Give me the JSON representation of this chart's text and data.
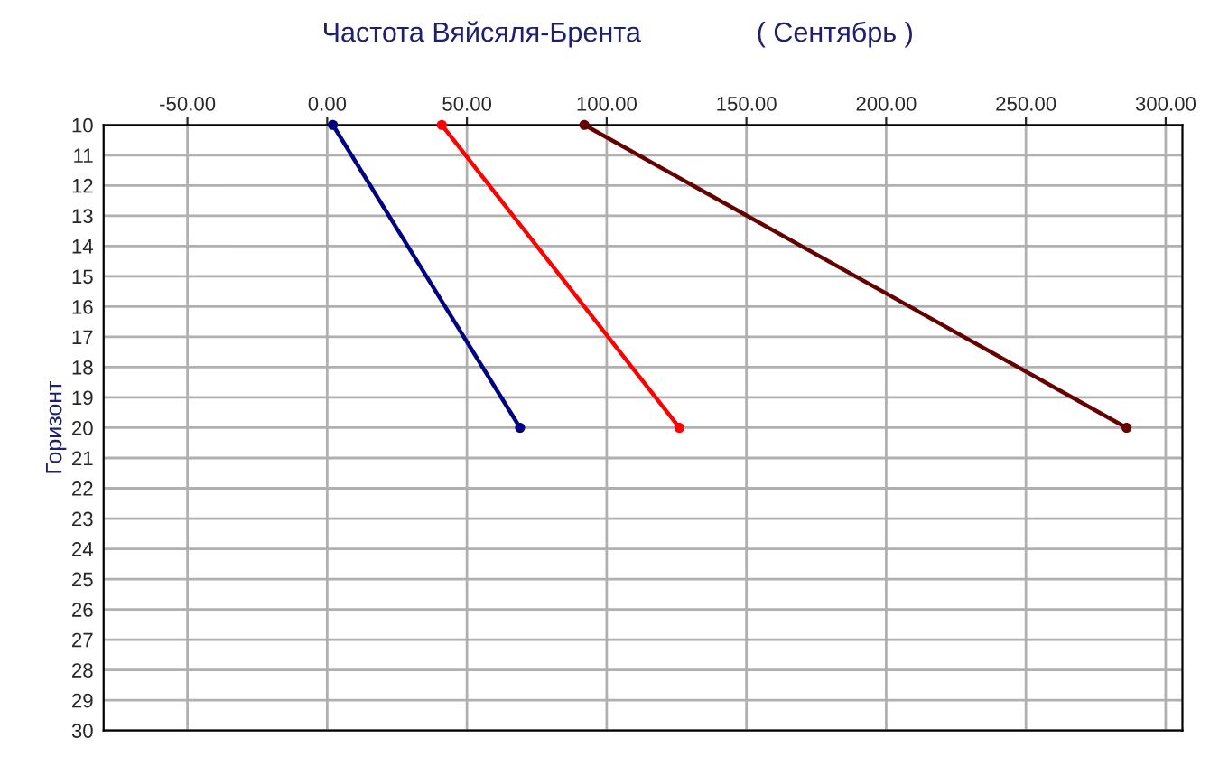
{
  "chart_data": {
    "type": "line",
    "title": "Частота Вяйсяля-Брента",
    "subtitle": "( Сентябрь )",
    "ylabel": "Горизонт",
    "series": [
      {
        "color": "#000080",
        "x": [
          2,
          69
        ],
        "values": [
          10,
          20
        ]
      },
      {
        "color": "#ff0000",
        "x": [
          41,
          126
        ],
        "values": [
          10,
          20
        ]
      },
      {
        "color": "#660000",
        "x": [
          92,
          286
        ],
        "values": [
          10,
          20
        ]
      }
    ],
    "xlim": [
      -80,
      306
    ],
    "xticks": [
      {
        "value": -50,
        "label": "-50.00"
      },
      {
        "value": 0,
        "label": "0.00"
      },
      {
        "value": 50,
        "label": "50.00"
      },
      {
        "value": 100,
        "label": "100.00"
      },
      {
        "value": 150,
        "label": "150.00"
      },
      {
        "value": 200,
        "label": "200.00"
      },
      {
        "value": 250,
        "label": "250.00"
      },
      {
        "value": 300,
        "label": "300.00"
      }
    ],
    "ylim": [
      30,
      10
    ],
    "yticks": [
      10,
      11,
      12,
      13,
      14,
      15,
      16,
      17,
      18,
      19,
      20,
      21,
      22,
      23,
      24,
      25,
      26,
      27,
      28,
      29,
      30
    ],
    "grid": true,
    "marker": "circle",
    "line_style": "solid"
  }
}
